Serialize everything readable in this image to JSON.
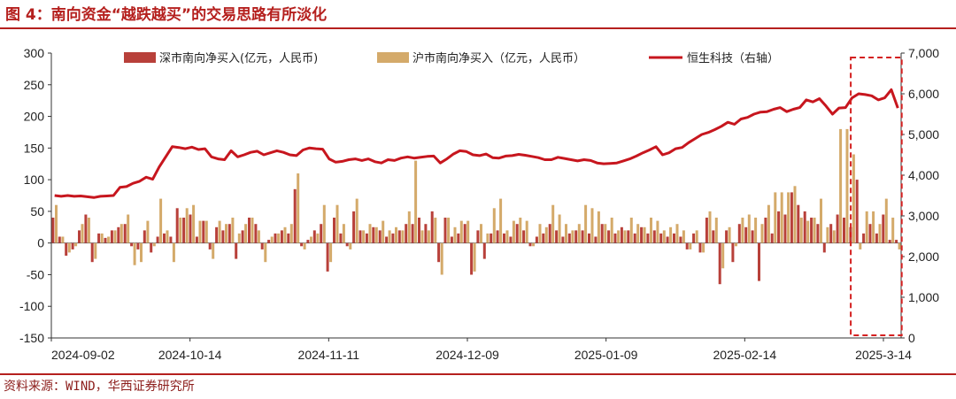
{
  "header": {
    "title": "图 4：南向资金“越跌越买”的交易思路有所淡化"
  },
  "footer": {
    "source": "资料来源：WIND，华西证券研究所"
  },
  "colors": {
    "shenzhen_bar": "#b8403a",
    "shanghai_bar": "#d4aa6a",
    "hstech_line": "#c7161e",
    "highlight_box": "#d42020",
    "title": "#b5201e"
  },
  "chart_data": {
    "type": "bar",
    "title": "",
    "legend": {
      "position": "top",
      "entries": [
        "深市南向净买入(亿元，人民币)",
        "沪市南向净买入（亿元，人民币）",
        "恒生科技（右轴）"
      ]
    },
    "x_tick_labels": [
      "2024-09-02",
      "2024-10-14",
      "2024-11-11",
      "2024-12-09",
      "2025-01-09",
      "2025-02-14",
      "2025-3-14"
    ],
    "left_axis": {
      "ylim": [
        -150,
        300
      ],
      "ticks": [
        -150,
        -100,
        -50,
        0,
        50,
        100,
        150,
        200,
        250,
        300
      ]
    },
    "right_axis": {
      "ylim": [
        0,
        7000
      ],
      "ticks": [
        "0",
        "1,000",
        "2,000",
        "3,000",
        "4,000",
        "5,000",
        "6,000",
        "7,000"
      ]
    },
    "grid": false,
    "n_days": 130,
    "series": [
      {
        "name": "深市南向净买入(亿元，人民币)",
        "kind": "bar",
        "axis": "left",
        "values": [
          40,
          10,
          -20,
          -10,
          20,
          45,
          -30,
          15,
          8,
          20,
          25,
          30,
          -5,
          -10,
          20,
          -15,
          10,
          15,
          10,
          55,
          40,
          45,
          10,
          35,
          -10,
          25,
          20,
          30,
          -25,
          20,
          40,
          30,
          -10,
          5,
          15,
          20,
          15,
          85,
          -5,
          5,
          20,
          30,
          -45,
          40,
          15,
          -5,
          50,
          20,
          15,
          25,
          20,
          10,
          15,
          20,
          30,
          30,
          40,
          30,
          50,
          -30,
          40,
          10,
          15,
          30,
          -50,
          20,
          -25,
          15,
          20,
          15,
          10,
          30,
          20,
          -5,
          10,
          15,
          30,
          20,
          10,
          15,
          20,
          20,
          15,
          10,
          30,
          20,
          15,
          25,
          20,
          15,
          25,
          15,
          20,
          15,
          10,
          15,
          10,
          -10,
          15,
          -15,
          40,
          20,
          -65,
          20,
          -30,
          30,
          25,
          20,
          -60,
          40,
          15,
          50,
          45,
          80,
          60,
          50,
          40,
          30,
          -15,
          30,
          45,
          40,
          25,
          100,
          15,
          30,
          15,
          45,
          5,
          5
        ]
      },
      {
        "name": "沪市南向净买入（亿元，人民币）",
        "kind": "bar",
        "axis": "left",
        "values": [
          60,
          10,
          -15,
          -5,
          30,
          40,
          -25,
          15,
          10,
          20,
          30,
          45,
          -35,
          -30,
          35,
          -5,
          70,
          20,
          -30,
          40,
          55,
          60,
          35,
          35,
          -25,
          35,
          30,
          40,
          15,
          30,
          40,
          20,
          -30,
          10,
          15,
          25,
          30,
          110,
          -10,
          10,
          15,
          60,
          -30,
          60,
          30,
          -10,
          70,
          20,
          30,
          25,
          35,
          20,
          25,
          20,
          50,
          130,
          20,
          20,
          40,
          -50,
          40,
          25,
          35,
          35,
          -45,
          30,
          15,
          55,
          70,
          20,
          35,
          40,
          35,
          -5,
          30,
          25,
          60,
          45,
          30,
          20,
          30,
          60,
          55,
          50,
          30,
          40,
          20,
          20,
          40,
          30,
          25,
          40,
          35,
          20,
          25,
          30,
          20,
          -10,
          20,
          -15,
          50,
          40,
          -40,
          25,
          -5,
          40,
          45,
          40,
          30,
          60,
          80,
          80,
          80,
          90,
          40,
          35,
          40,
          70,
          25,
          20,
          180,
          180,
          140,
          -10,
          50,
          50,
          30,
          70,
          40,
          -10
        ]
      },
      {
        "name": "恒生科技（右轴）",
        "kind": "line",
        "axis": "right",
        "values": [
          3500,
          3480,
          3500,
          3480,
          3490,
          3470,
          3450,
          3480,
          3490,
          3500,
          3700,
          3720,
          3800,
          3850,
          3950,
          3900,
          4200,
          4450,
          4700,
          4680,
          4650,
          4690,
          4630,
          4650,
          4450,
          4400,
          4380,
          4600,
          4450,
          4500,
          4560,
          4590,
          4500,
          4550,
          4600,
          4560,
          4500,
          4480,
          4620,
          4670,
          4650,
          4640,
          4400,
          4320,
          4340,
          4380,
          4400,
          4360,
          4400,
          4330,
          4300,
          4380,
          4360,
          4420,
          4450,
          4420,
          4440,
          4460,
          4470,
          4300,
          4400,
          4520,
          4600,
          4580,
          4500,
          4480,
          4520,
          4430,
          4420,
          4470,
          4480,
          4510,
          4490,
          4460,
          4430,
          4380,
          4380,
          4440,
          4410,
          4380,
          4350,
          4380,
          4360,
          4300,
          4280,
          4290,
          4300,
          4350,
          4400,
          4470,
          4550,
          4620,
          4700,
          4500,
          4550,
          4650,
          4680,
          4800,
          4900,
          5000,
          5050,
          5120,
          5200,
          5300,
          5250,
          5380,
          5420,
          5500,
          5550,
          5560,
          5620,
          5660,
          5560,
          5620,
          5660,
          5850,
          5800,
          5880,
          5700,
          5500,
          5650,
          5660,
          5900,
          6000,
          5980,
          5950,
          5850,
          5900,
          6100,
          5650
        ]
      }
    ],
    "annotations": [
      {
        "type": "dashed-box",
        "from_index": 123,
        "to_index": 129
      }
    ]
  }
}
